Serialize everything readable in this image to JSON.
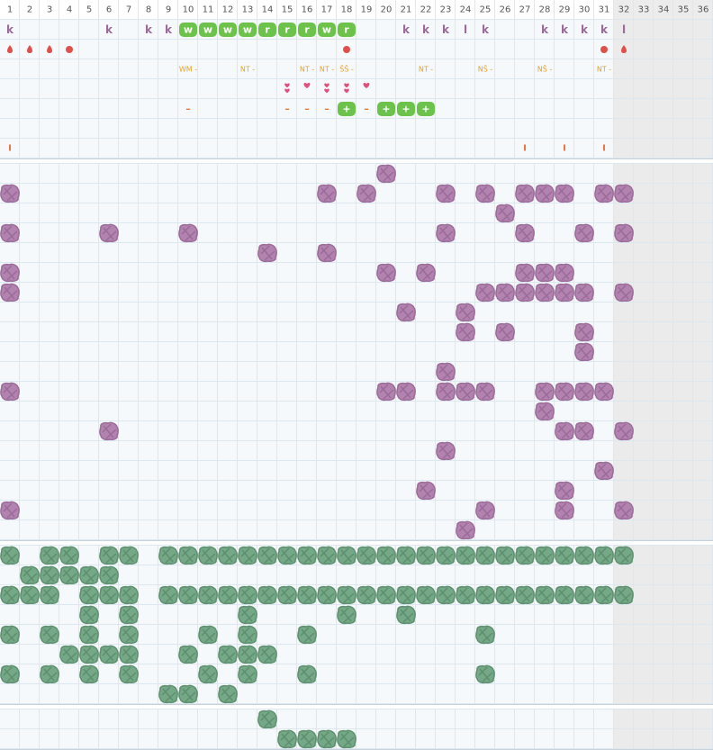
{
  "header": {
    "columns": [
      "1",
      "2",
      "3",
      "4",
      "5",
      "6",
      "7",
      "8",
      "9",
      "10",
      "11",
      "12",
      "13",
      "14",
      "15",
      "16",
      "17",
      "18",
      "19",
      "20",
      "21",
      "22",
      "23",
      "24",
      "25",
      "26",
      "27",
      "28",
      "29",
      "30",
      "31",
      "32",
      "33",
      "34",
      "35",
      "36"
    ],
    "shaded_from": 32
  },
  "top": {
    "rows": [
      {
        "cells": [
          {
            "col": 1,
            "style": "letter",
            "text": "k"
          },
          {
            "col": 6,
            "style": "letter",
            "text": "k"
          },
          {
            "col": 8,
            "style": "letter",
            "text": "k"
          },
          {
            "col": 9,
            "style": "letter",
            "text": "k"
          },
          {
            "col": 10,
            "style": "badge",
            "text": "w"
          },
          {
            "col": 11,
            "style": "badge",
            "text": "w"
          },
          {
            "col": 12,
            "style": "badge",
            "text": "w"
          },
          {
            "col": 13,
            "style": "badge",
            "text": "w"
          },
          {
            "col": 14,
            "style": "badge",
            "text": "r"
          },
          {
            "col": 15,
            "style": "badge",
            "text": "r"
          },
          {
            "col": 16,
            "style": "badge",
            "text": "r"
          },
          {
            "col": 17,
            "style": "badge",
            "text": "w"
          },
          {
            "col": 18,
            "style": "badge",
            "text": "r"
          },
          {
            "col": 21,
            "style": "letter",
            "text": "k"
          },
          {
            "col": 22,
            "style": "letter",
            "text": "k"
          },
          {
            "col": 23,
            "style": "letter",
            "text": "k"
          },
          {
            "col": 24,
            "style": "letter",
            "text": "l"
          },
          {
            "col": 25,
            "style": "letter",
            "text": "k"
          },
          {
            "col": 28,
            "style": "letter",
            "text": "k"
          },
          {
            "col": 29,
            "style": "letter",
            "text": "k"
          },
          {
            "col": 30,
            "style": "letter",
            "text": "k"
          },
          {
            "col": 31,
            "style": "letter",
            "text": "k"
          },
          {
            "col": 32,
            "style": "letter",
            "text": "l"
          }
        ]
      },
      {
        "cells": [
          {
            "col": 1,
            "style": "drop"
          },
          {
            "col": 2,
            "style": "drop"
          },
          {
            "col": 3,
            "style": "drop"
          },
          {
            "col": 4,
            "style": "dot"
          },
          {
            "col": 18,
            "style": "dot"
          },
          {
            "col": 31,
            "style": "dot"
          },
          {
            "col": 32,
            "style": "drop"
          }
        ]
      },
      {
        "cells": [
          {
            "col": 10,
            "style": "label",
            "text": "WM -"
          },
          {
            "col": 13,
            "style": "label",
            "text": "NT -"
          },
          {
            "col": 16,
            "style": "label",
            "text": "NT -"
          },
          {
            "col": 17,
            "style": "label",
            "text": "NT -"
          },
          {
            "col": 18,
            "style": "label",
            "text": "ŠŠ -"
          },
          {
            "col": 22,
            "style": "label",
            "text": "NT -"
          },
          {
            "col": 25,
            "style": "label",
            "text": "NŠ -"
          },
          {
            "col": 28,
            "style": "label",
            "text": "NŠ -"
          },
          {
            "col": 31,
            "style": "label",
            "text": "NT -"
          }
        ]
      },
      {
        "cells": [
          {
            "col": 15,
            "style": "heart2"
          },
          {
            "col": 16,
            "style": "heart"
          },
          {
            "col": 17,
            "style": "heart2"
          },
          {
            "col": 18,
            "style": "heart2"
          },
          {
            "col": 19,
            "style": "heart"
          }
        ]
      },
      {
        "cells": [
          {
            "col": 10,
            "style": "dash",
            "text": "–"
          },
          {
            "col": 15,
            "style": "dash",
            "text": "–"
          },
          {
            "col": 16,
            "style": "dash",
            "text": "–"
          },
          {
            "col": 17,
            "style": "dash",
            "text": "–"
          },
          {
            "col": 18,
            "style": "badge",
            "text": "+"
          },
          {
            "col": 19,
            "style": "dash",
            "text": "–"
          },
          {
            "col": 20,
            "style": "badge",
            "text": "+"
          },
          {
            "col": 21,
            "style": "badge",
            "text": "+"
          },
          {
            "col": 22,
            "style": "badge",
            "text": "+"
          }
        ]
      },
      {
        "cells": []
      },
      {
        "cells": [
          {
            "col": 1,
            "style": "bar",
            "text": "I"
          },
          {
            "col": 27,
            "style": "bar",
            "text": "I"
          },
          {
            "col": 29,
            "style": "bar",
            "text": "I"
          },
          {
            "col": 31,
            "style": "bar",
            "text": "I"
          }
        ]
      }
    ]
  },
  "purple": [
    [
      20
    ],
    [
      1,
      17,
      19,
      23,
      25,
      27,
      28,
      29,
      31,
      32
    ],
    [
      26
    ],
    [
      1,
      6,
      10,
      23,
      27,
      30,
      32
    ],
    [
      14,
      17
    ],
    [
      1,
      20,
      22,
      27,
      28,
      29
    ],
    [
      1,
      25,
      26,
      27,
      28,
      29,
      30,
      32
    ],
    [
      21,
      24
    ],
    [
      24,
      26,
      30
    ],
    [
      30
    ],
    [
      23
    ],
    [
      1,
      20,
      21,
      23,
      24,
      25,
      28,
      29,
      30,
      31
    ],
    [
      28
    ],
    [
      6,
      29,
      30,
      32
    ],
    [
      23
    ],
    [
      31
    ],
    [
      22,
      29
    ],
    [
      1,
      25,
      29,
      32
    ],
    [
      24
    ]
  ],
  "green": [
    [
      1,
      3,
      4,
      6,
      7,
      9,
      10,
      11,
      12,
      13,
      14,
      15,
      16,
      17,
      18,
      19,
      20,
      21,
      22,
      23,
      24,
      25,
      26,
      27,
      28,
      29,
      30,
      31,
      32
    ],
    [
      2,
      3,
      4,
      5,
      6
    ],
    [
      1,
      2,
      3,
      5,
      6,
      7,
      9,
      10,
      11,
      12,
      13,
      14,
      15,
      16,
      17,
      18,
      19,
      20,
      21,
      22,
      23,
      24,
      25,
      26,
      27,
      28,
      29,
      30,
      31,
      32
    ],
    [
      5,
      7,
      13,
      18,
      21
    ],
    [
      1,
      3,
      5,
      7,
      11,
      13,
      16,
      25
    ],
    [
      4,
      5,
      6,
      7,
      10,
      12,
      13,
      14
    ],
    [
      1,
      3,
      5,
      7,
      11,
      13,
      16,
      25
    ],
    [
      9,
      10,
      12
    ]
  ],
  "bottom": [
    [
      14
    ],
    [
      15,
      16,
      17,
      18
    ]
  ]
}
